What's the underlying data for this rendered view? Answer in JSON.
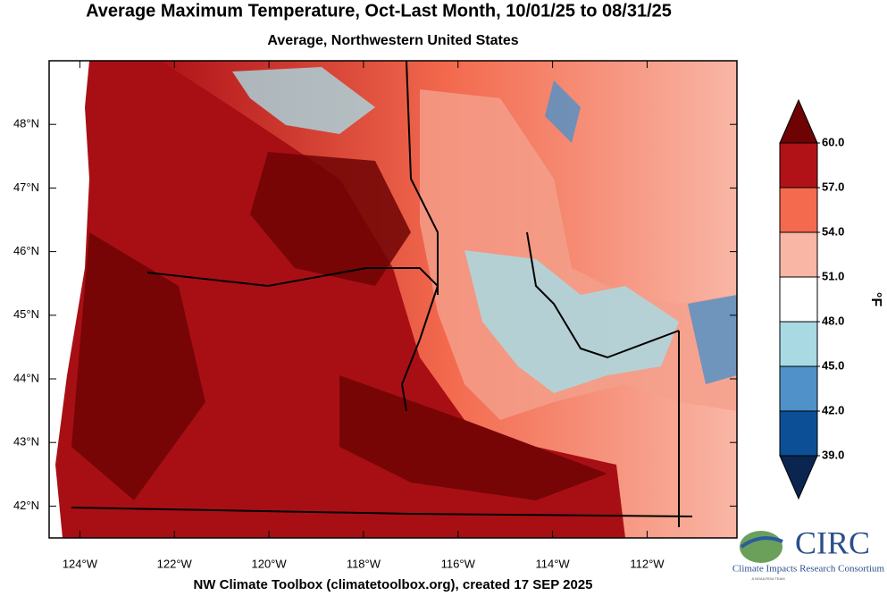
{
  "title": "Average Maximum Temperature, Oct-Last Month, 10/01/25 to 08/31/25",
  "subtitle": "Average, Northwestern United States",
  "map": {
    "lonlim": [
      -124.65,
      -110.1
    ],
    "latlim": [
      41.5,
      49.0
    ],
    "lon_ticks": [
      {
        "value": -124,
        "label": "124°W"
      },
      {
        "value": -122,
        "label": "122°W"
      },
      {
        "value": -120,
        "label": "120°W"
      },
      {
        "value": -118,
        "label": "118°W"
      },
      {
        "value": -116,
        "label": "116°W"
      },
      {
        "value": -114,
        "label": "114°W"
      },
      {
        "value": -112,
        "label": "112°W"
      }
    ],
    "lat_ticks": [
      {
        "value": 42,
        "label": "42°N"
      },
      {
        "value": 43,
        "label": "43°N"
      },
      {
        "value": 44,
        "label": "44°N"
      },
      {
        "value": 45,
        "label": "45°N"
      },
      {
        "value": 46,
        "label": "46°N"
      },
      {
        "value": 47,
        "label": "47°N"
      },
      {
        "value": 48,
        "label": "48°N"
      }
    ]
  },
  "colorbar": {
    "unit": "°F",
    "levels": [
      {
        "value": 39,
        "label": "39.0"
      },
      {
        "value": 42,
        "label": "42.0"
      },
      {
        "value": 45,
        "label": "45.0"
      },
      {
        "value": 48,
        "label": "48.0"
      },
      {
        "value": 51,
        "label": "51.0"
      },
      {
        "value": 54,
        "label": "54.0"
      },
      {
        "value": 57,
        "label": "57.0"
      },
      {
        "value": 60,
        "label": "60.0"
      }
    ],
    "colors": [
      "#0a2550",
      "#0c4f97",
      "#4f91c8",
      "#a9d9e2",
      "#ffffff",
      "#f9b6a5",
      "#f36a4e",
      "#b01217",
      "#6e0304"
    ]
  },
  "footer": "NW Climate Toolbox (climatetoolbox.org), created 17 SEP 2025",
  "logo": {
    "name": "CIRC",
    "caption": "Climate Impacts Research Consortium",
    "tagline": "A NOAA RISA TEAM"
  }
}
